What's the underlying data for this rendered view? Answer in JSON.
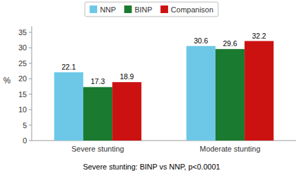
{
  "chart_data": {
    "type": "bar",
    "categories": [
      "Severe stunting",
      "Moderate stunting"
    ],
    "series": [
      {
        "name": "NNP",
        "color": "#6DC8E8",
        "values": [
          22.1,
          30.6
        ]
      },
      {
        "name": "BINP",
        "color": "#1A7A30",
        "values": [
          17.3,
          29.6
        ]
      },
      {
        "name": "Companison",
        "color": "#CC1111",
        "values": [
          18.9,
          32.2
        ]
      }
    ],
    "ylabel": "%",
    "ylim": [
      0,
      37
    ],
    "yticks": [
      0,
      5,
      10,
      15,
      20,
      25,
      30,
      35
    ],
    "data_labels": true,
    "grid": false,
    "legend": "top",
    "footnote": "Severe stunting: BINP vs NNP, p<0.0001"
  }
}
